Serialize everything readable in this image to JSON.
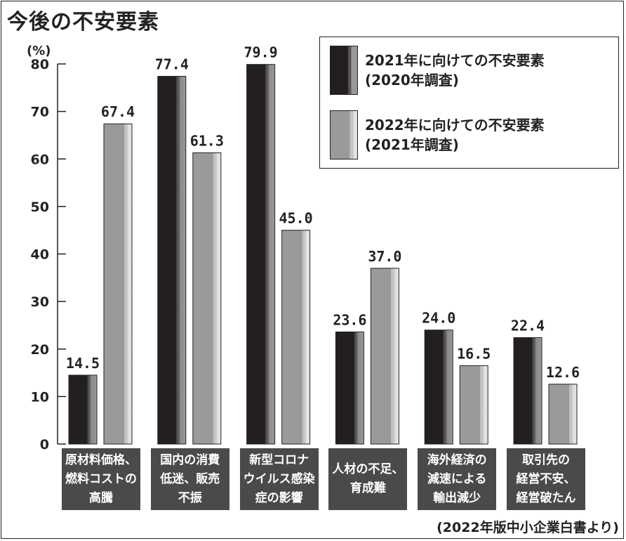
{
  "chart_data": {
    "type": "bar",
    "title": "今後の不安要素",
    "ylabel": "(%)",
    "ylim": [
      0,
      80
    ],
    "yticks": [
      0,
      10,
      20,
      30,
      40,
      50,
      60,
      70,
      80
    ],
    "categories": [
      "原材料価格、\n燃料コストの\n高騰",
      "国内の消費\n低迷、販売\n不振",
      "新型コロナ\nウイルス感染\n症の影響",
      "人材の不足、\n育成難",
      "海外経済の\n減速による\n輸出減少",
      "取引先の\n経営不安、\n経営破たん"
    ],
    "series": [
      {
        "name": "2021年に向けての不安要素\n(2020年調査)",
        "color": "#231f20",
        "values": [
          14.5,
          77.4,
          79.9,
          23.6,
          24.0,
          22.4
        ]
      },
      {
        "name": "2022年に向けての不安要素\n(2021年調査)",
        "color": "#9a9a9a",
        "values": [
          67.4,
          61.3,
          45.0,
          37.0,
          16.5,
          12.6
        ]
      }
    ],
    "legend_position": "top-right",
    "grid": false,
    "source": "(2022年版中小企業白書より)"
  }
}
